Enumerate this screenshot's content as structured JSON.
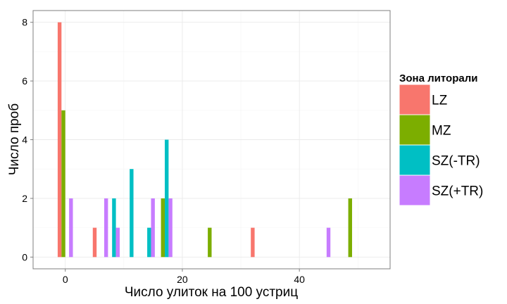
{
  "chart_data": {
    "type": "bar",
    "xlabel": "Число улиток на 100 устриц",
    "ylabel": "Число проб",
    "xlim": [
      -5.5,
      55.5
    ],
    "ylim": [
      -0.4,
      8.4
    ],
    "x_ticks": [
      0,
      20,
      40
    ],
    "y_ticks": [
      0,
      2,
      4,
      6,
      8
    ],
    "grid": true,
    "bar_group_width": 2.6,
    "legend": {
      "title": "Зона литорали",
      "placement": "right"
    },
    "series": [
      {
        "name": "LZ",
        "color": "#F8766D",
        "points": [
          [
            0,
            8
          ],
          [
            6,
            1
          ],
          [
            33,
            1
          ]
        ]
      },
      {
        "name": "MZ",
        "color": "#7CAE00",
        "points": [
          [
            0,
            5
          ],
          [
            17,
            2
          ],
          [
            25,
            1
          ],
          [
            49,
            2
          ]
        ]
      },
      {
        "name": "SZ(-TR)",
        "color": "#00BFC4",
        "points": [
          [
            8,
            2
          ],
          [
            11,
            3
          ],
          [
            14,
            1
          ],
          [
            17,
            4
          ]
        ]
      },
      {
        "name": "SZ(+TR)",
        "color": "#C77CFF",
        "points": [
          [
            0,
            2
          ],
          [
            6,
            2
          ],
          [
            8,
            1
          ],
          [
            14,
            2
          ],
          [
            17,
            2
          ],
          [
            44,
            1
          ]
        ]
      }
    ]
  }
}
